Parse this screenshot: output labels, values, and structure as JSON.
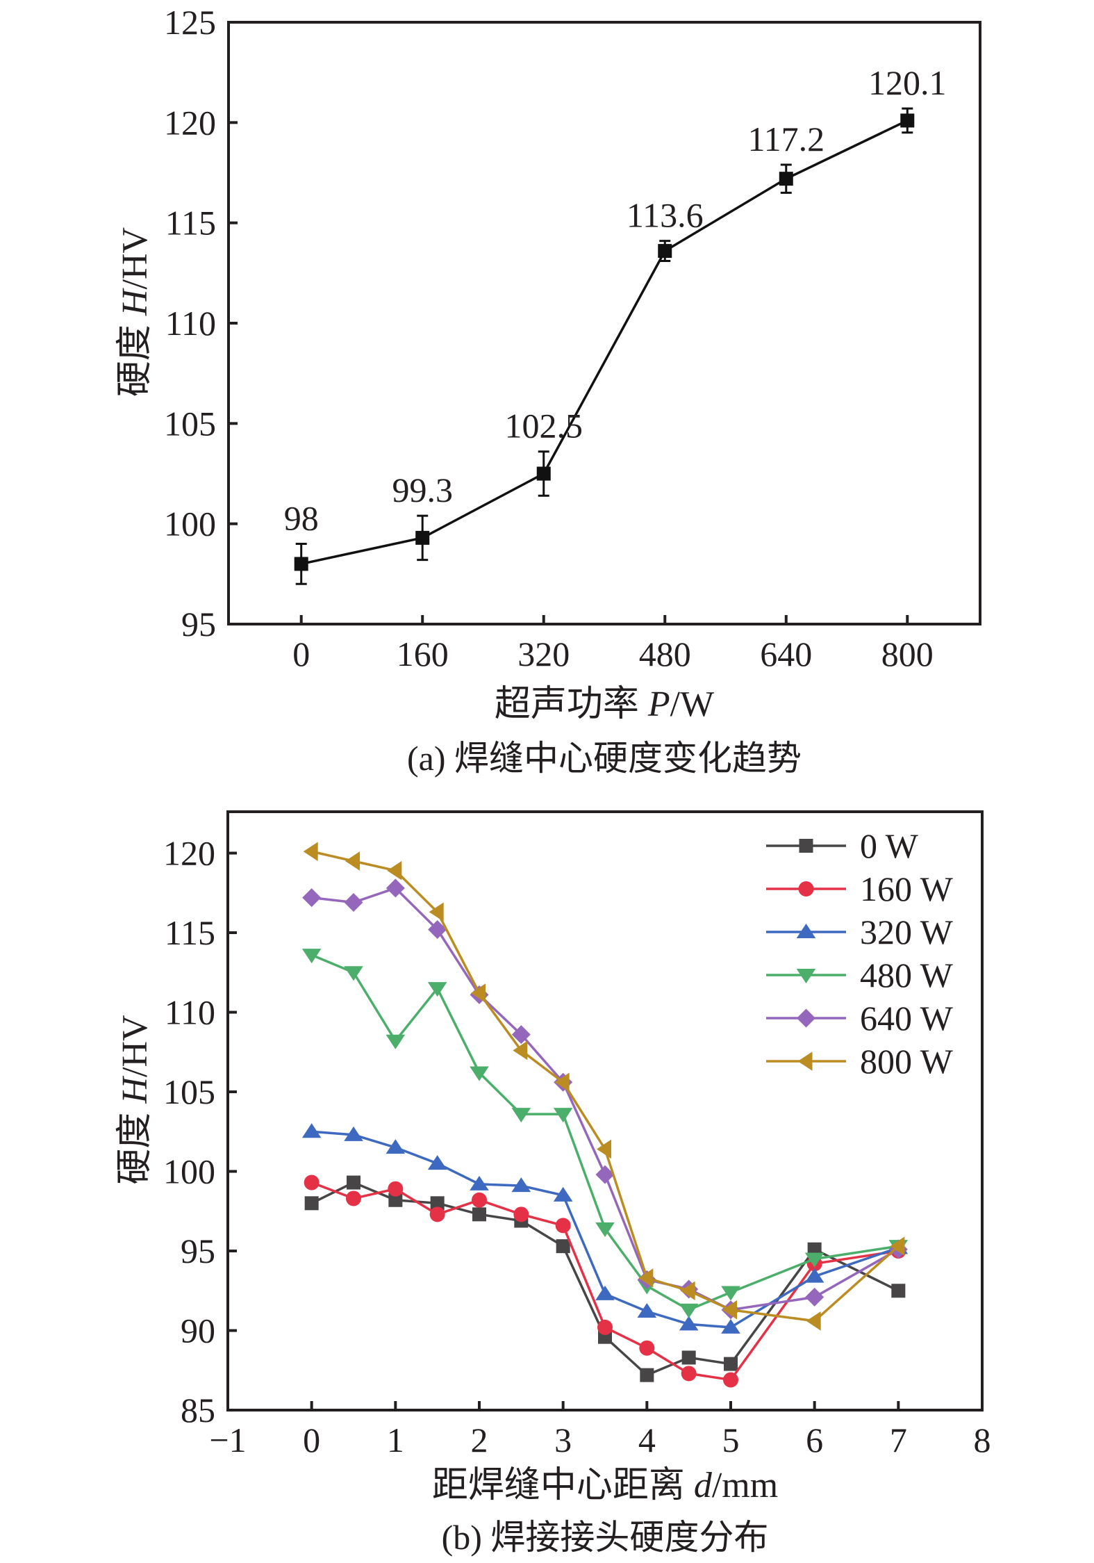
{
  "chart_data": [
    {
      "id": "a",
      "type": "line",
      "caption": "(a) 焊缝中心硬度变化趋势",
      "title": "",
      "xlabel": {
        "prefix": "超声功率 ",
        "var": "P",
        "unit": "/W"
      },
      "ylabel": {
        "prefix": "硬度 ",
        "var": "H",
        "unit": "/HV"
      },
      "xlim": [
        -96,
        896
      ],
      "ylim": [
        95,
        125
      ],
      "xticks": [
        0,
        160,
        320,
        480,
        640,
        800
      ],
      "xtick_labels": [
        "0",
        "160",
        "320",
        "480",
        "640",
        "800"
      ],
      "yticks": [
        95,
        100,
        105,
        110,
        115,
        120,
        125
      ],
      "ytick_labels": [
        "95",
        "100",
        "105",
        "110",
        "115",
        "120",
        "125"
      ],
      "grid": false,
      "legend": null,
      "series": [
        {
          "name": "焊缝中心硬度",
          "color": "#111111",
          "marker": "square",
          "x": [
            0,
            160,
            320,
            480,
            640,
            800
          ],
          "y": [
            98,
            99.3,
            102.5,
            113.6,
            117.2,
            120.1
          ],
          "error": [
            1.0,
            1.1,
            1.1,
            0.5,
            0.7,
            0.6
          ],
          "data_labels": [
            "98",
            "99.3",
            "102.5",
            "113.6",
            "117.2",
            "120.1"
          ]
        }
      ]
    },
    {
      "id": "b",
      "type": "line",
      "caption": "(b) 焊接接头硬度分布",
      "title": "",
      "xlabel": {
        "prefix": "距焊缝中心距离 ",
        "var": "d",
        "unit": "/mm"
      },
      "ylabel": {
        "prefix": "硬度 ",
        "var": "H",
        "unit": "/HV"
      },
      "xlim": [
        -1,
        8
      ],
      "ylim": [
        85,
        122.6
      ],
      "xticks": [
        -1,
        0,
        1,
        2,
        3,
        4,
        5,
        6,
        7,
        8
      ],
      "xtick_labels": [
        "−1",
        "0",
        "1",
        "2",
        "3",
        "4",
        "5",
        "6",
        "7",
        "8"
      ],
      "yticks": [
        85,
        90,
        95,
        100,
        105,
        110,
        115,
        120
      ],
      "ytick_labels": [
        "85",
        "90",
        "95",
        "100",
        "105",
        "110",
        "115",
        "120"
      ],
      "grid": false,
      "legend": "top-right",
      "x": [
        0,
        0.5,
        1,
        1.5,
        2,
        2.5,
        3,
        3.5,
        4,
        4.5,
        5,
        6,
        7
      ],
      "series": [
        {
          "name": "0 W",
          "color": "#474546",
          "marker": "square",
          "values": [
            98.0,
            99.3,
            98.2,
            98.0,
            97.3,
            96.9,
            95.3,
            89.6,
            87.2,
            88.3,
            87.9,
            95.1,
            92.5
          ]
        },
        {
          "name": "160 W",
          "color": "#E53145",
          "marker": "circle",
          "values": [
            99.3,
            98.3,
            98.9,
            97.3,
            98.2,
            97.3,
            96.6,
            90.2,
            88.9,
            87.3,
            86.9,
            94.2,
            95.0
          ]
        },
        {
          "name": "320 W",
          "color": "#3D69C0",
          "marker": "triangle-up",
          "values": [
            102.5,
            102.3,
            101.5,
            100.5,
            99.2,
            99.1,
            98.5,
            92.3,
            91.2,
            90.4,
            90.2,
            93.4,
            95.2
          ]
        },
        {
          "name": "480 W",
          "color": "#4BAE6A",
          "marker": "triangle-down",
          "values": [
            113.6,
            112.5,
            108.2,
            111.5,
            106.2,
            103.6,
            103.6,
            96.4,
            92.8,
            91.3,
            92.4,
            94.5,
            95.3
          ]
        },
        {
          "name": "640 W",
          "color": "#9467BD",
          "marker": "diamond",
          "values": [
            117.2,
            116.9,
            117.8,
            115.2,
            111.1,
            108.6,
            105.6,
            99.8,
            93.2,
            92.6,
            91.3,
            92.1,
            95.1
          ]
        },
        {
          "name": "800 W",
          "color": "#BB8C22",
          "marker": "triangle-left",
          "values": [
            120.1,
            119.5,
            118.9,
            116.3,
            111.2,
            107.6,
            105.6,
            101.4,
            93.3,
            92.5,
            91.3,
            90.6,
            95.3
          ]
        }
      ]
    }
  ]
}
